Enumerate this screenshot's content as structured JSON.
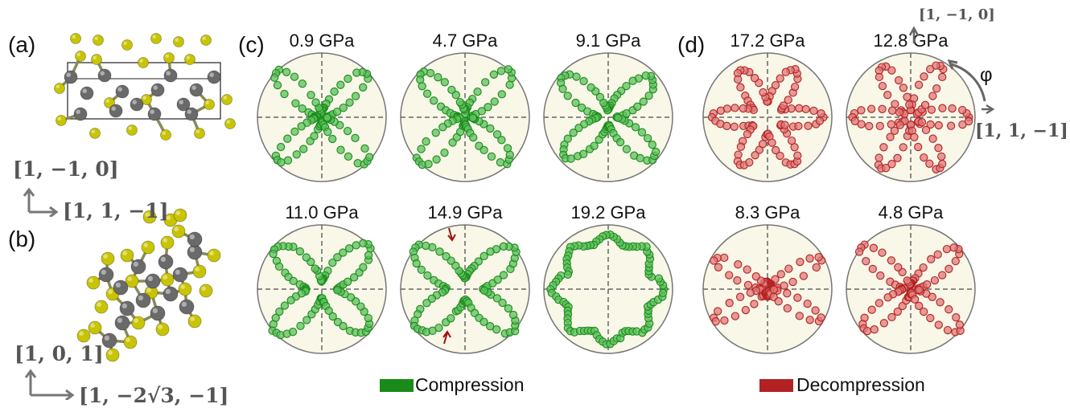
{
  "panel_labels": {
    "a": "(a)",
    "b": "(b)",
    "c": "(c)",
    "d": "(d)"
  },
  "crystal_axes": {
    "a_vertical": "[1, −1, 0]",
    "a_horizontal": "[1, 1, −1]",
    "b_vertical": "[1, 0, 1]",
    "b_horizontal": "[1, −2√3, −1]"
  },
  "polar_axes": {
    "vertical": "[1, −1, 0]",
    "horizontal": "[1, 1, −1]",
    "angle": "φ"
  },
  "colors": {
    "compression": "#1a8a1a",
    "compression_fill": "#5cc05c",
    "decompression": "#b32222",
    "decompression_fill": "#e07a7a",
    "background": "#f8f7e8",
    "atom_yellow": "#c9c400",
    "atom_gray": "#6a6a6a"
  },
  "chart_data": [
    {
      "type": "scatter",
      "coord": "polar",
      "group": "Compression",
      "pressure": "0.9 GPa",
      "pattern": "four-lobe",
      "lobe_axis_deg": 45,
      "lobe_length": 0.92,
      "lobe_width": 0.55
    },
    {
      "type": "scatter",
      "coord": "polar",
      "group": "Compression",
      "pressure": "4.7 GPa",
      "pattern": "four-lobe",
      "lobe_axis_deg": 45,
      "lobe_length": 0.92,
      "lobe_width": 0.6
    },
    {
      "type": "scatter",
      "coord": "polar",
      "group": "Compression",
      "pressure": "9.1 GPa",
      "pattern": "four-lobe",
      "lobe_axis_deg": 42,
      "lobe_length": 0.85,
      "lobe_width": 0.72
    },
    {
      "type": "scatter",
      "coord": "polar",
      "group": "Compression",
      "pressure": "11.0 GPa",
      "pattern": "four-lobe",
      "lobe_axis_deg": 42,
      "lobe_length": 0.9,
      "lobe_width": 0.78
    },
    {
      "type": "scatter",
      "coord": "polar",
      "group": "Compression",
      "pressure": "14.9 GPa",
      "pattern": "four-lobe",
      "lobe_axis_deg": 40,
      "lobe_length": 0.9,
      "lobe_width": 0.82,
      "arrows": true
    },
    {
      "type": "scatter",
      "coord": "polar",
      "group": "Compression",
      "pressure": "19.2 GPa",
      "pattern": "ring",
      "radius": 0.78,
      "ripple": 0.08
    },
    {
      "type": "scatter",
      "coord": "polar",
      "group": "Decompression",
      "pressure": "17.2 GPa",
      "pattern": "star",
      "lobes": 6,
      "radius": 0.55,
      "ripple": 0.32
    },
    {
      "type": "scatter",
      "coord": "polar",
      "group": "Decompression",
      "pressure": "12.8 GPa",
      "pattern": "star",
      "lobes": 6,
      "radius": 0.52,
      "ripple": 0.38
    },
    {
      "type": "scatter",
      "coord": "polar",
      "group": "Decompression",
      "pressure": "8.3 GPa",
      "pattern": "four-lobe",
      "lobe_axis_deg": 30,
      "lobe_length": 0.85,
      "lobe_width": 0.45
    },
    {
      "type": "scatter",
      "coord": "polar",
      "group": "Decompression",
      "pressure": "4.8 GPa",
      "pattern": "four-lobe",
      "lobe_axis_deg": 40,
      "lobe_length": 0.92,
      "lobe_width": 0.55
    }
  ],
  "legend": {
    "compression": "Compression",
    "decompression": "Decompression"
  }
}
